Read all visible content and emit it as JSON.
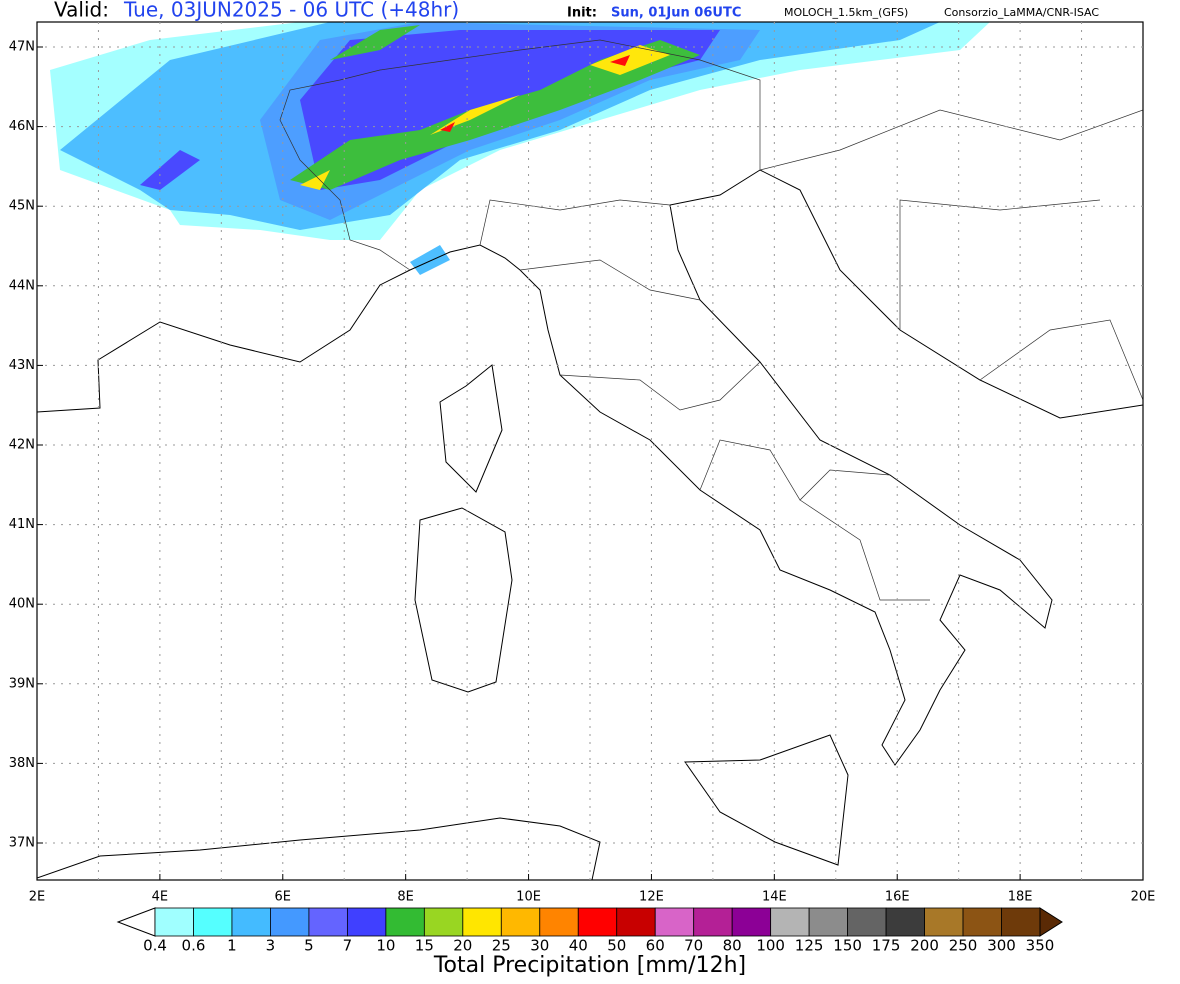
{
  "header": {
    "valid_label": "Valid:",
    "valid_time": "Tue, 03JUN2025 - 06 UTC (+48hr)",
    "init_label": "Init:",
    "init_time": "Sun, 01Jun 06UTC",
    "model": "MOLOCH_1.5km_(GFS)",
    "credit": "Consorzio_LaMMA/CNR-ISAC"
  },
  "map": {
    "lat_labels": [
      "47N",
      "46N",
      "45N",
      "44N",
      "43N",
      "42N",
      "41N",
      "40N",
      "39N",
      "38N",
      "37N"
    ],
    "lon_labels": [
      "2E",
      "4E",
      "6E",
      "8E",
      "10E",
      "12E",
      "14E",
      "16E",
      "18E",
      "20E"
    ]
  },
  "colorbar": {
    "labels": [
      "0.4",
      "0.6",
      "1",
      "3",
      "5",
      "7",
      "10",
      "15",
      "20",
      "25",
      "30",
      "40",
      "50",
      "60",
      "70",
      "80",
      "100",
      "125",
      "150",
      "175",
      "200",
      "250",
      "300",
      "350"
    ],
    "colors": [
      "#a0ffff",
      "#55ffff",
      "#44bbff",
      "#4499ff",
      "#6464ff",
      "#4040ff",
      "#33bb33",
      "#99d622",
      "#ffe600",
      "#ffb800",
      "#ff8400",
      "#ff0000",
      "#c80000",
      "#d864c8",
      "#b42096",
      "#8c0096",
      "#b4b4b4",
      "#8c8c8c",
      "#646464",
      "#3c3c3c",
      "#a87828",
      "#8c5414",
      "#6e3a0a"
    ],
    "under_color": "#ffffff",
    "over_color": "#5a2a05",
    "title": "Total Precipitation [mm/12h]"
  }
}
